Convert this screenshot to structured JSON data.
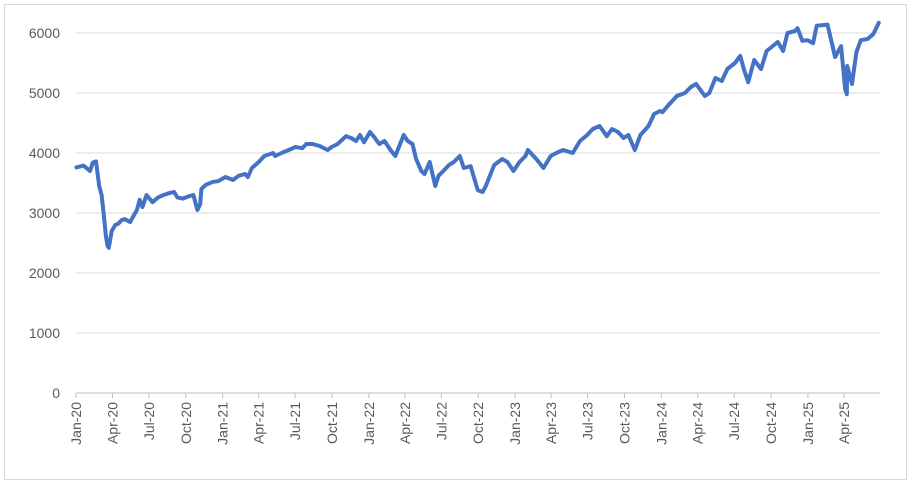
{
  "chart_data": {
    "type": "line",
    "title": "",
    "xlabel": "",
    "ylabel": "",
    "ylim": [
      0,
      6000
    ],
    "y_ticks": [
      0,
      1000,
      2000,
      3000,
      4000,
      5000,
      6000
    ],
    "x_tick_labels": [
      "Jan-20",
      "Apr-20",
      "Jul-20",
      "Oct-20",
      "Jan-21",
      "Apr-21",
      "Jul-21",
      "Oct-21",
      "Jan-22",
      "Apr-22",
      "Jul-22",
      "Oct-22",
      "Jan-23",
      "Apr-23",
      "Jul-23",
      "Oct-23",
      "Jan-24",
      "Apr-24",
      "Jul-24",
      "Oct-24",
      "Jan-25",
      "Apr-25"
    ],
    "x_range": [
      "2020-01-01",
      "2025-06-30"
    ],
    "grid": "horizontal",
    "legend": "none",
    "series": [
      {
        "color": "#4472C4",
        "points": [
          [
            "2020-01-02",
            3760
          ],
          [
            "2020-01-20",
            3790
          ],
          [
            "2020-02-05",
            3700
          ],
          [
            "2020-02-12",
            3840
          ],
          [
            "2020-02-20",
            3860
          ],
          [
            "2020-02-28",
            3450
          ],
          [
            "2020-03-05",
            3300
          ],
          [
            "2020-03-10",
            3000
          ],
          [
            "2020-03-16",
            2600
          ],
          [
            "2020-03-20",
            2450
          ],
          [
            "2020-03-23",
            2420
          ],
          [
            "2020-03-30",
            2700
          ],
          [
            "2020-04-08",
            2800
          ],
          [
            "2020-04-15",
            2820
          ],
          [
            "2020-04-24",
            2880
          ],
          [
            "2020-05-01",
            2900
          ],
          [
            "2020-05-15",
            2850
          ],
          [
            "2020-06-01",
            3050
          ],
          [
            "2020-06-08",
            3220
          ],
          [
            "2020-06-15",
            3100
          ],
          [
            "2020-06-25",
            3300
          ],
          [
            "2020-07-10",
            3180
          ],
          [
            "2020-07-24",
            3260
          ],
          [
            "2020-08-07",
            3300
          ],
          [
            "2020-08-20",
            3330
          ],
          [
            "2020-09-02",
            3350
          ],
          [
            "2020-09-10",
            3260
          ],
          [
            "2020-09-23",
            3240
          ],
          [
            "2020-10-09",
            3280
          ],
          [
            "2020-10-20",
            3300
          ],
          [
            "2020-10-30",
            3050
          ],
          [
            "2020-11-06",
            3150
          ],
          [
            "2020-11-09",
            3400
          ],
          [
            "2020-11-20",
            3470
          ],
          [
            "2020-12-08",
            3520
          ],
          [
            "2020-12-21",
            3530
          ],
          [
            "2021-01-08",
            3600
          ],
          [
            "2021-01-27",
            3550
          ],
          [
            "2021-02-10",
            3620
          ],
          [
            "2021-02-26",
            3650
          ],
          [
            "2021-03-05",
            3600
          ],
          [
            "2021-03-15",
            3750
          ],
          [
            "2021-04-01",
            3850
          ],
          [
            "2021-04-15",
            3950
          ],
          [
            "2021-05-07",
            4000
          ],
          [
            "2021-05-12",
            3950
          ],
          [
            "2021-05-28",
            4000
          ],
          [
            "2021-06-15",
            4050
          ],
          [
            "2021-07-02",
            4100
          ],
          [
            "2021-07-19",
            4080
          ],
          [
            "2021-07-29",
            4150
          ],
          [
            "2021-08-13",
            4150
          ],
          [
            "2021-08-30",
            4120
          ],
          [
            "2021-09-20",
            4050
          ],
          [
            "2021-09-30",
            4100
          ],
          [
            "2021-10-15",
            4150
          ],
          [
            "2021-11-05",
            4280
          ],
          [
            "2021-11-18",
            4250
          ],
          [
            "2021-11-30",
            4200
          ],
          [
            "2021-12-10",
            4300
          ],
          [
            "2021-12-20",
            4180
          ],
          [
            "2022-01-04",
            4350
          ],
          [
            "2022-01-14",
            4270
          ],
          [
            "2022-01-27",
            4150
          ],
          [
            "2022-02-09",
            4200
          ],
          [
            "2022-02-24",
            4050
          ],
          [
            "2022-03-08",
            3950
          ],
          [
            "2022-03-29",
            4300
          ],
          [
            "2022-04-08",
            4200
          ],
          [
            "2022-04-20",
            4150
          ],
          [
            "2022-04-29",
            3900
          ],
          [
            "2022-05-12",
            3700
          ],
          [
            "2022-05-20",
            3650
          ],
          [
            "2022-06-02",
            3850
          ],
          [
            "2022-06-16",
            3450
          ],
          [
            "2022-06-24",
            3620
          ],
          [
            "2022-07-06",
            3700
          ],
          [
            "2022-07-20",
            3800
          ],
          [
            "2022-08-01",
            3850
          ],
          [
            "2022-08-16",
            3950
          ],
          [
            "2022-08-26",
            3750
          ],
          [
            "2022-09-12",
            3780
          ],
          [
            "2022-09-30",
            3380
          ],
          [
            "2022-10-12",
            3350
          ],
          [
            "2022-10-20",
            3450
          ],
          [
            "2022-11-10",
            3800
          ],
          [
            "2022-11-30",
            3900
          ],
          [
            "2022-12-13",
            3850
          ],
          [
            "2022-12-28",
            3700
          ],
          [
            "2023-01-12",
            3850
          ],
          [
            "2023-01-27",
            3950
          ],
          [
            "2023-02-02",
            4050
          ],
          [
            "2023-02-23",
            3900
          ],
          [
            "2023-03-13",
            3750
          ],
          [
            "2023-03-31",
            3950
          ],
          [
            "2023-04-14",
            4000
          ],
          [
            "2023-05-01",
            4050
          ],
          [
            "2023-05-25",
            4000
          ],
          [
            "2023-06-12",
            4200
          ],
          [
            "2023-06-30",
            4300
          ],
          [
            "2023-07-14",
            4400
          ],
          [
            "2023-07-31",
            4450
          ],
          [
            "2023-08-18",
            4280
          ],
          [
            "2023-08-31",
            4400
          ],
          [
            "2023-09-15",
            4350
          ],
          [
            "2023-09-29",
            4250
          ],
          [
            "2023-10-11",
            4300
          ],
          [
            "2023-10-27",
            4050
          ],
          [
            "2023-11-10",
            4300
          ],
          [
            "2023-11-30",
            4450
          ],
          [
            "2023-12-14",
            4650
          ],
          [
            "2023-12-29",
            4700
          ],
          [
            "2024-01-04",
            4680
          ],
          [
            "2024-01-19",
            4800
          ],
          [
            "2024-02-09",
            4950
          ],
          [
            "2024-02-29",
            5000
          ],
          [
            "2024-03-15",
            5100
          ],
          [
            "2024-03-28",
            5150
          ],
          [
            "2024-04-19",
            4950
          ],
          [
            "2024-04-30",
            5000
          ],
          [
            "2024-05-15",
            5250
          ],
          [
            "2024-05-31",
            5200
          ],
          [
            "2024-06-14",
            5400
          ],
          [
            "2024-07-03",
            5500
          ],
          [
            "2024-07-16",
            5620
          ],
          [
            "2024-07-25",
            5400
          ],
          [
            "2024-08-05",
            5180
          ],
          [
            "2024-08-20",
            5550
          ],
          [
            "2024-09-06",
            5400
          ],
          [
            "2024-09-20",
            5700
          ],
          [
            "2024-10-18",
            5850
          ],
          [
            "2024-10-31",
            5700
          ],
          [
            "2024-11-11",
            6000
          ],
          [
            "2024-11-29",
            6030
          ],
          [
            "2024-12-06",
            6080
          ],
          [
            "2024-12-18",
            5870
          ],
          [
            "2024-12-31",
            5880
          ],
          [
            "2025-01-14",
            5830
          ],
          [
            "2025-01-23",
            6120
          ],
          [
            "2025-02-19",
            6140
          ],
          [
            "2025-03-10",
            5600
          ],
          [
            "2025-03-25",
            5780
          ],
          [
            "2025-04-04",
            5070
          ],
          [
            "2025-04-08",
            4980
          ],
          [
            "2025-04-09",
            5450
          ],
          [
            "2025-04-21",
            5150
          ],
          [
            "2025-05-02",
            5680
          ],
          [
            "2025-05-13",
            5880
          ],
          [
            "2025-05-30",
            5900
          ],
          [
            "2025-06-13",
            5980
          ],
          [
            "2025-06-27",
            6170
          ]
        ]
      }
    ]
  }
}
